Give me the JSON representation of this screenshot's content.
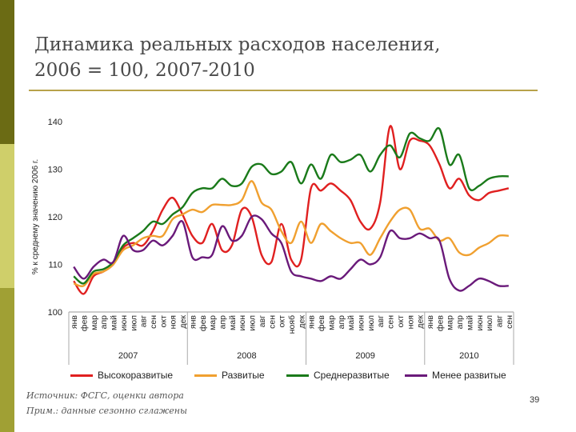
{
  "slide": {
    "title_line1": "Динамика реальных расходов населения,",
    "title_line2": "2006 = 100, 2007-2010",
    "source": "Источник: ФСГС, оценки автора",
    "note": "Прим.: данные сезонно сглажены",
    "page_number": "39"
  },
  "chart_data": {
    "type": "line",
    "ylabel": "% к среднему значению 2006 г.",
    "ylim": [
      100,
      140
    ],
    "yticks": [
      100,
      110,
      120,
      130,
      140
    ],
    "grid": false,
    "legend_position": "bottom",
    "years": [
      "2007",
      "2008",
      "2009",
      "2010"
    ],
    "categories": [
      "янв",
      "фев",
      "мар",
      "апр",
      "май",
      "июн",
      "июл",
      "авг",
      "сен",
      "окт",
      "ноя",
      "дек",
      "янв",
      "фев",
      "мар",
      "апр",
      "май",
      "июн",
      "июл",
      "авг",
      "сен",
      "окт",
      "нояб",
      "дек",
      "янв",
      "фев",
      "мар",
      "апр",
      "май",
      "июн",
      "июл",
      "авг",
      "сен",
      "окт",
      "ноя",
      "дек",
      "янв",
      "фев",
      "мар",
      "апр",
      "май",
      "июн",
      "июл",
      "авг",
      "сен"
    ],
    "series": [
      {
        "name": "Высокоразвитые",
        "color": "#e02020",
        "values": [
          106.5,
          103.8,
          107.5,
          108.5,
          110.0,
          113.5,
          114.5,
          114.0,
          117.0,
          121.5,
          124.0,
          120.5,
          116.0,
          114.5,
          118.5,
          113.0,
          114.0,
          121.5,
          120.0,
          112.0,
          110.5,
          118.5,
          111.0,
          111.0,
          126.0,
          125.5,
          127.0,
          125.5,
          123.5,
          119.0,
          117.5,
          123.0,
          139.0,
          130.0,
          136.0,
          136.0,
          135.0,
          131.0,
          126.0,
          128.0,
          124.5,
          123.5,
          125.0,
          125.5,
          126.0
        ]
      },
      {
        "name": "Развитые",
        "color": "#f0a030",
        "values": [
          106.0,
          105.5,
          108.0,
          108.5,
          110.0,
          113.0,
          114.0,
          115.5,
          116.0,
          116.0,
          119.5,
          120.5,
          121.5,
          121.0,
          122.5,
          122.5,
          122.5,
          123.5,
          127.5,
          123.0,
          121.5,
          117.0,
          114.5,
          119.0,
          114.5,
          118.5,
          117.0,
          115.5,
          114.5,
          114.5,
          112.0,
          115.5,
          119.0,
          121.5,
          121.5,
          117.5,
          117.5,
          115.0,
          115.5,
          112.5,
          112.0,
          113.5,
          114.5,
          116.0,
          116.0
        ]
      },
      {
        "name": "Среднеразвитые",
        "color": "#1a7a1a",
        "values": [
          107.5,
          106.0,
          108.5,
          109.0,
          110.5,
          114.0,
          115.5,
          117.0,
          119.0,
          118.5,
          120.5,
          122.0,
          125.0,
          126.0,
          126.0,
          128.0,
          126.5,
          127.0,
          130.5,
          131.0,
          129.0,
          129.5,
          131.5,
          127.0,
          131.0,
          128.0,
          133.0,
          131.5,
          132.0,
          133.0,
          129.5,
          133.0,
          135.0,
          132.5,
          137.5,
          136.5,
          136.0,
          138.5,
          131.0,
          133.0,
          126.0,
          126.5,
          128.0,
          128.5,
          128.5
        ]
      },
      {
        "name": "Менее развитые",
        "color": "#6a1a7a",
        "values": [
          109.5,
          107.0,
          109.5,
          111.0,
          110.5,
          116.0,
          113.0,
          113.0,
          115.0,
          114.0,
          116.0,
          119.0,
          111.5,
          111.5,
          112.0,
          118.0,
          115.0,
          116.0,
          120.0,
          119.5,
          116.5,
          114.5,
          108.5,
          107.5,
          107.0,
          106.5,
          107.5,
          107.0,
          109.0,
          111.0,
          110.0,
          111.5,
          117.0,
          115.5,
          115.5,
          116.5,
          115.5,
          115.0,
          107.0,
          104.5,
          105.5,
          107.0,
          106.5,
          105.5,
          105.5
        ]
      }
    ]
  }
}
